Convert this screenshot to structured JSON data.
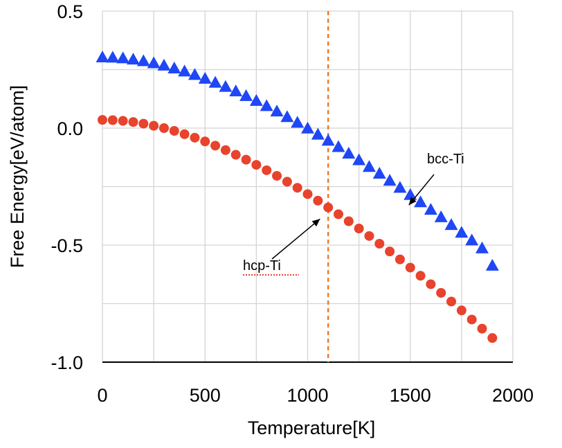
{
  "chart_data": {
    "type": "scatter",
    "title": "",
    "xlabel": "Temperature[K]",
    "ylabel": "Free Energy[eV/atom]",
    "xlim": [
      0,
      2000
    ],
    "ylim": [
      -1.0,
      0.5
    ],
    "x_ticks": [
      "0",
      "500",
      "1000",
      "1500",
      "2000"
    ],
    "y_ticks": [
      "0.5",
      "0.0",
      "-0.5",
      "-1.0"
    ],
    "grid": true,
    "vline": {
      "x": 1100,
      "color": "#f07a2a",
      "style": "dashed"
    },
    "series": [
      {
        "name": "bcc-Ti",
        "marker": "triangle",
        "color": "#1f47f5",
        "x": [
          0,
          50,
          100,
          150,
          200,
          250,
          300,
          350,
          400,
          450,
          500,
          550,
          600,
          650,
          700,
          750,
          800,
          850,
          900,
          950,
          1000,
          1050,
          1100,
          1150,
          1200,
          1250,
          1300,
          1350,
          1400,
          1450,
          1500,
          1550,
          1600,
          1650,
          1700,
          1750,
          1800,
          1850,
          1900
        ],
        "values": [
          0.3,
          0.299,
          0.296,
          0.291,
          0.284,
          0.275,
          0.265,
          0.253,
          0.24,
          0.225,
          0.209,
          0.192,
          0.174,
          0.155,
          0.135,
          0.114,
          0.092,
          0.069,
          0.045,
          0.021,
          -0.004,
          -0.03,
          -0.056,
          -0.083,
          -0.111,
          -0.139,
          -0.168,
          -0.197,
          -0.227,
          -0.257,
          -0.288,
          -0.319,
          -0.351,
          -0.383,
          -0.416,
          -0.449,
          -0.482,
          -0.516,
          -0.59
        ]
      },
      {
        "name": "hcp-Ti",
        "marker": "circle",
        "color": "#e8432c",
        "x": [
          0,
          50,
          100,
          150,
          200,
          250,
          300,
          350,
          400,
          450,
          500,
          550,
          600,
          650,
          700,
          750,
          800,
          850,
          900,
          950,
          1000,
          1050,
          1100,
          1150,
          1200,
          1250,
          1300,
          1350,
          1400,
          1450,
          1500,
          1550,
          1600,
          1650,
          1700,
          1750,
          1800,
          1850,
          1900
        ],
        "values": [
          0.035,
          0.034,
          0.031,
          0.026,
          0.019,
          0.01,
          0.0,
          -0.012,
          -0.026,
          -0.041,
          -0.057,
          -0.075,
          -0.094,
          -0.114,
          -0.135,
          -0.157,
          -0.18,
          -0.204,
          -0.229,
          -0.255,
          -0.282,
          -0.31,
          -0.339,
          -0.368,
          -0.398,
          -0.429,
          -0.461,
          -0.494,
          -0.527,
          -0.561,
          -0.596,
          -0.631,
          -0.667,
          -0.704,
          -0.741,
          -0.779,
          -0.818,
          -0.857,
          -0.897
        ]
      }
    ],
    "annotations": [
      {
        "text": "bcc-Ti",
        "series": "bcc-Ti",
        "arrow_to_x": 1500,
        "arrow_to_y": -0.32
      },
      {
        "text": "hcp-Ti",
        "series": "hcp-Ti",
        "arrow_to_x": 1050,
        "arrow_to_y": -0.4
      }
    ]
  }
}
